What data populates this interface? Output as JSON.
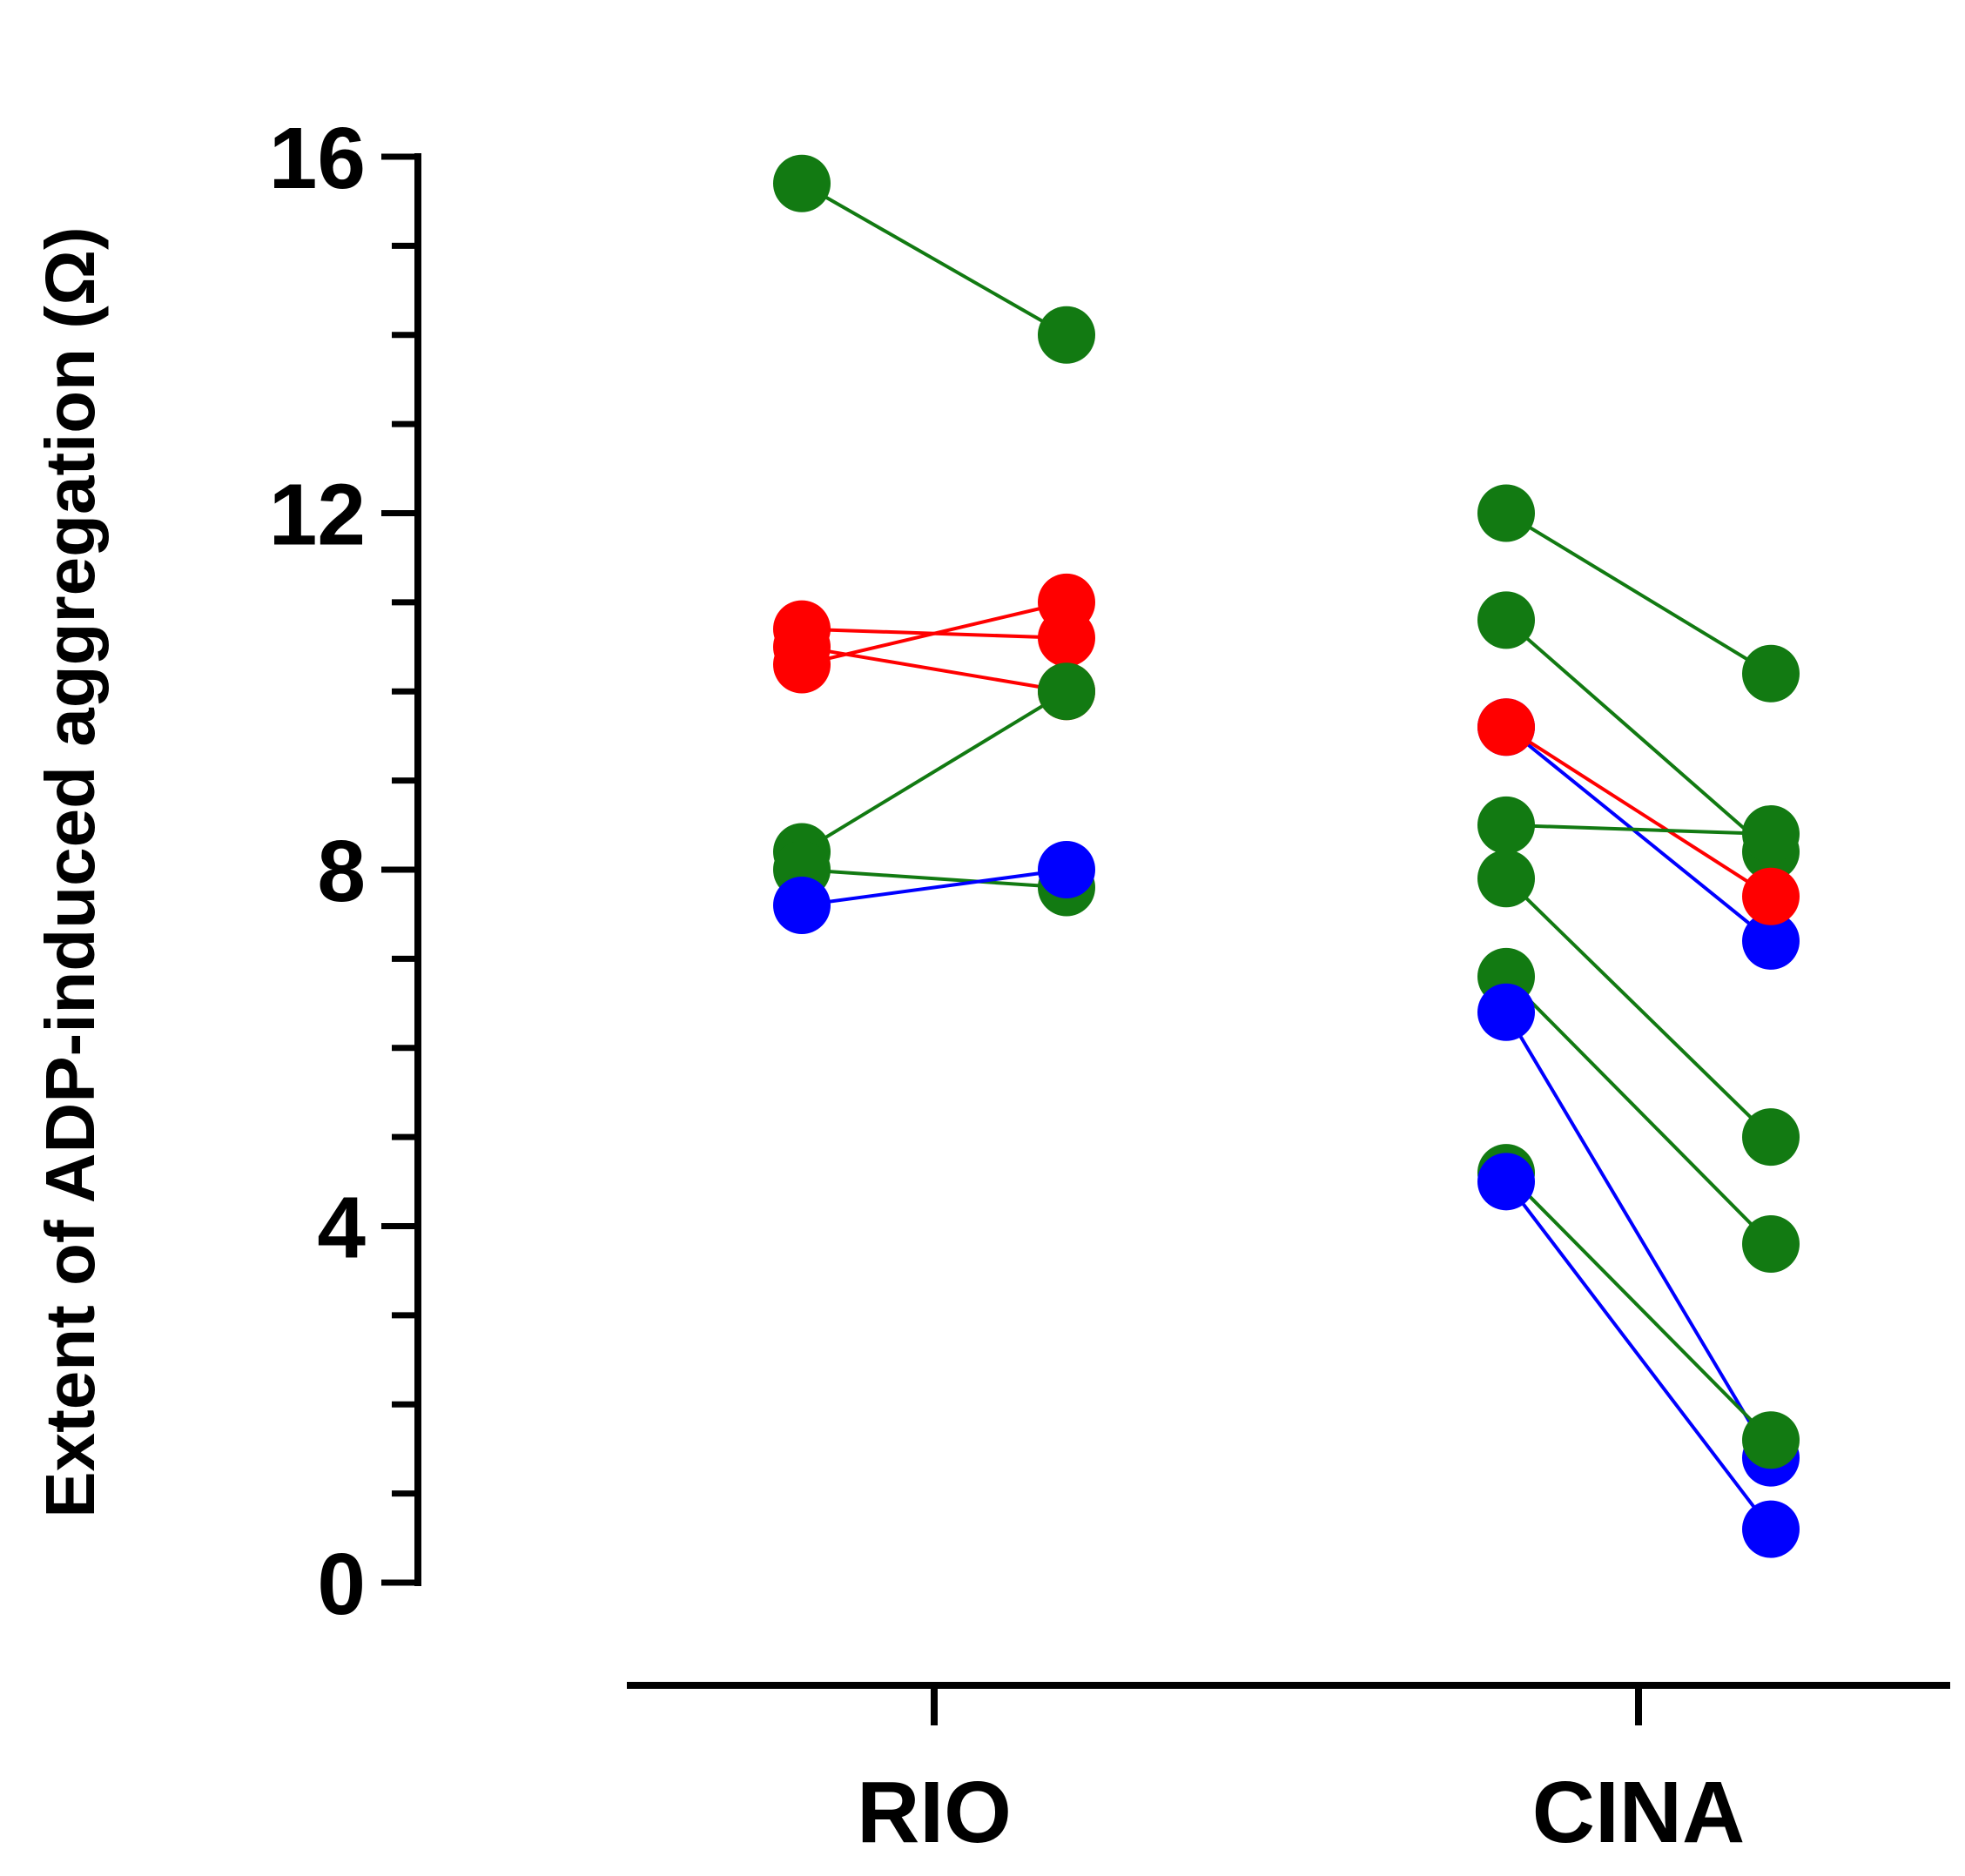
{
  "chart_data": {
    "type": "scatter",
    "title": "",
    "xlabel": "",
    "ylabel": "Extent of ADP-induced aggregation (Ω)",
    "ylim": [
      0,
      16
    ],
    "yticks": [
      "0",
      "4",
      "8",
      "12",
      "16"
    ],
    "grid": false,
    "legend": "none",
    "groups": [
      "RIO",
      "CINA"
    ],
    "colors": {
      "green": "#127a12",
      "red": "#ff0000",
      "blue": "#0000ff",
      "axis": "#000000"
    },
    "pairs": [
      {
        "group": "RIO",
        "color": "green",
        "values": [
          15.7,
          14.0
        ]
      },
      {
        "group": "RIO",
        "color": "red",
        "values": [
          10.7,
          10.6
        ]
      },
      {
        "group": "RIO",
        "color": "red",
        "values": [
          10.3,
          11.0
        ]
      },
      {
        "group": "RIO",
        "color": "red",
        "values": [
          10.5,
          10.0
        ]
      },
      {
        "group": "RIO",
        "color": "green",
        "values": [
          8.2,
          10.0
        ]
      },
      {
        "group": "RIO",
        "color": "green",
        "values": [
          8.0,
          7.8
        ]
      },
      {
        "group": "RIO",
        "color": "blue",
        "values": [
          7.6,
          8.0
        ]
      },
      {
        "group": "CINA",
        "color": "green",
        "values": [
          12.0,
          10.2
        ]
      },
      {
        "group": "CINA",
        "color": "green",
        "values": [
          10.8,
          8.2
        ]
      },
      {
        "group": "CINA",
        "color": "blue",
        "values": [
          9.6,
          7.2
        ]
      },
      {
        "group": "CINA",
        "color": "red",
        "values": [
          9.6,
          7.7
        ]
      },
      {
        "group": "CINA",
        "color": "green",
        "values": [
          8.5,
          8.4
        ]
      },
      {
        "group": "CINA",
        "color": "green",
        "values": [
          7.9,
          5.0
        ]
      },
      {
        "group": "CINA",
        "color": "green",
        "values": [
          6.8,
          3.8
        ]
      },
      {
        "group": "CINA",
        "color": "blue",
        "values": [
          6.4,
          1.4
        ]
      },
      {
        "group": "CINA",
        "color": "green",
        "values": [
          4.6,
          1.6
        ]
      },
      {
        "group": "CINA",
        "color": "blue",
        "values": [
          4.5,
          0.6
        ]
      }
    ]
  }
}
